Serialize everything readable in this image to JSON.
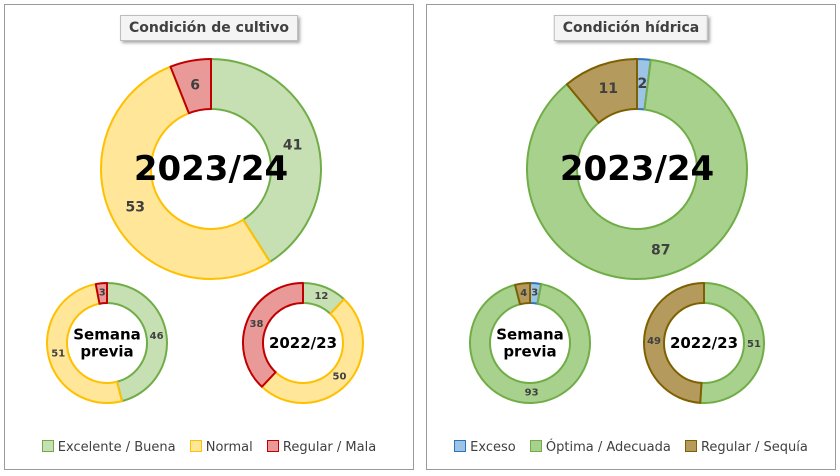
{
  "colors": {
    "excelente_buena": "#c6e0b4",
    "excelente_buena_stroke": "#70ad47",
    "normal": "#ffe699",
    "normal_stroke": "#ffc000",
    "regular_mala": "#ea9999",
    "regular_mala_stroke": "#c00000",
    "exceso": "#9dc3e6",
    "exceso_stroke": "#2e75b6",
    "optima": "#a9d18e",
    "optima_stroke": "#70ad47",
    "sequia": "#b49b5d",
    "sequia_stroke": "#7f6000"
  },
  "panels": [
    {
      "title": "Condición  de cultivo",
      "legend": [
        {
          "label": "Excelente / Buena",
          "color": "excelente_buena"
        },
        {
          "label": "Normal",
          "color": "normal"
        },
        {
          "label": "Regular / Mala",
          "color": "regular_mala"
        }
      ]
    },
    {
      "title": "Condición  hídrica",
      "legend": [
        {
          "label": "Exceso",
          "color": "exceso"
        },
        {
          "label": "Óptima / Adecuada",
          "color": "optima"
        },
        {
          "label": "Regular / Sequía",
          "color": "sequia"
        }
      ]
    }
  ],
  "chart_data": [
    {
      "type": "pie",
      "variant": "donut",
      "panel": "Condición  de cultivo",
      "center_label": [
        "2023/24"
      ],
      "slices": [
        {
          "category": "Excelente / Buena",
          "value": 41
        },
        {
          "category": "Normal",
          "value": 53
        },
        {
          "category": "Regular / Mala",
          "value": 6
        }
      ]
    },
    {
      "type": "pie",
      "variant": "donut",
      "panel": "Condición  de cultivo",
      "center_label": [
        "Semana",
        "previa"
      ],
      "slices": [
        {
          "category": "Excelente / Buena",
          "value": 46
        },
        {
          "category": "Normal",
          "value": 51
        },
        {
          "category": "Regular / Mala",
          "value": 3
        }
      ]
    },
    {
      "type": "pie",
      "variant": "donut",
      "panel": "Condición  de cultivo",
      "center_label": [
        "2022/23"
      ],
      "slices": [
        {
          "category": "Excelente / Buena",
          "value": 12
        },
        {
          "category": "Normal",
          "value": 50
        },
        {
          "category": "Regular / Mala",
          "value": 38
        }
      ]
    },
    {
      "type": "pie",
      "variant": "donut",
      "panel": "Condición  hídrica",
      "center_label": [
        "2023/24"
      ],
      "slices": [
        {
          "category": "Exceso",
          "value": 2
        },
        {
          "category": "Óptima / Adecuada",
          "value": 87
        },
        {
          "category": "Regular / Sequía",
          "value": 11
        }
      ]
    },
    {
      "type": "pie",
      "variant": "donut",
      "panel": "Condición  hídrica",
      "center_label": [
        "Semana",
        "previa"
      ],
      "slices": [
        {
          "category": "Exceso",
          "value": 3
        },
        {
          "category": "Óptima / Adecuada",
          "value": 93
        },
        {
          "category": "Regular / Sequía",
          "value": 4
        }
      ]
    },
    {
      "type": "pie",
      "variant": "donut",
      "panel": "Condición  hídrica",
      "center_label": [
        "2022/23"
      ],
      "slices": [
        {
          "category": "Exceso",
          "value": 0
        },
        {
          "category": "Óptima / Adecuada",
          "value": 51
        },
        {
          "category": "Regular / Sequía",
          "value": 49
        }
      ]
    }
  ]
}
